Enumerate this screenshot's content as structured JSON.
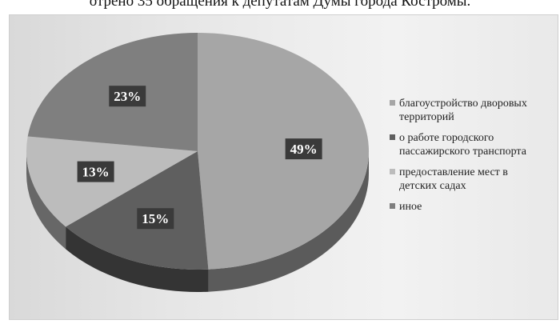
{
  "header_text": "отрено 35 обращения к депутатам Думы города Костромы.",
  "chart_data": {
    "type": "pie",
    "style": "3d",
    "categories": [
      "благоустройство дворовых территорий",
      "о работе городского пассажирского транспорта",
      "предоставление мест в детских садах",
      "иное"
    ],
    "values": [
      49,
      15,
      13,
      23
    ],
    "labels": [
      "49%",
      "15%",
      "13%",
      "23%"
    ],
    "colors": [
      "#a6a6a6",
      "#5f5f5f",
      "#bcbcbc",
      "#7f7f7f"
    ],
    "label_box_color": "#3a3a3a",
    "legend_position": "right"
  },
  "legend": [
    {
      "line1": "благоустройство дворовых",
      "line2": "территорий"
    },
    {
      "line1": "о работе городского",
      "line2": "пассажирского транспорта"
    },
    {
      "line1": "предоставление мест в",
      "line2": "детских садах"
    },
    {
      "line1": "иное",
      "line2": ""
    }
  ]
}
